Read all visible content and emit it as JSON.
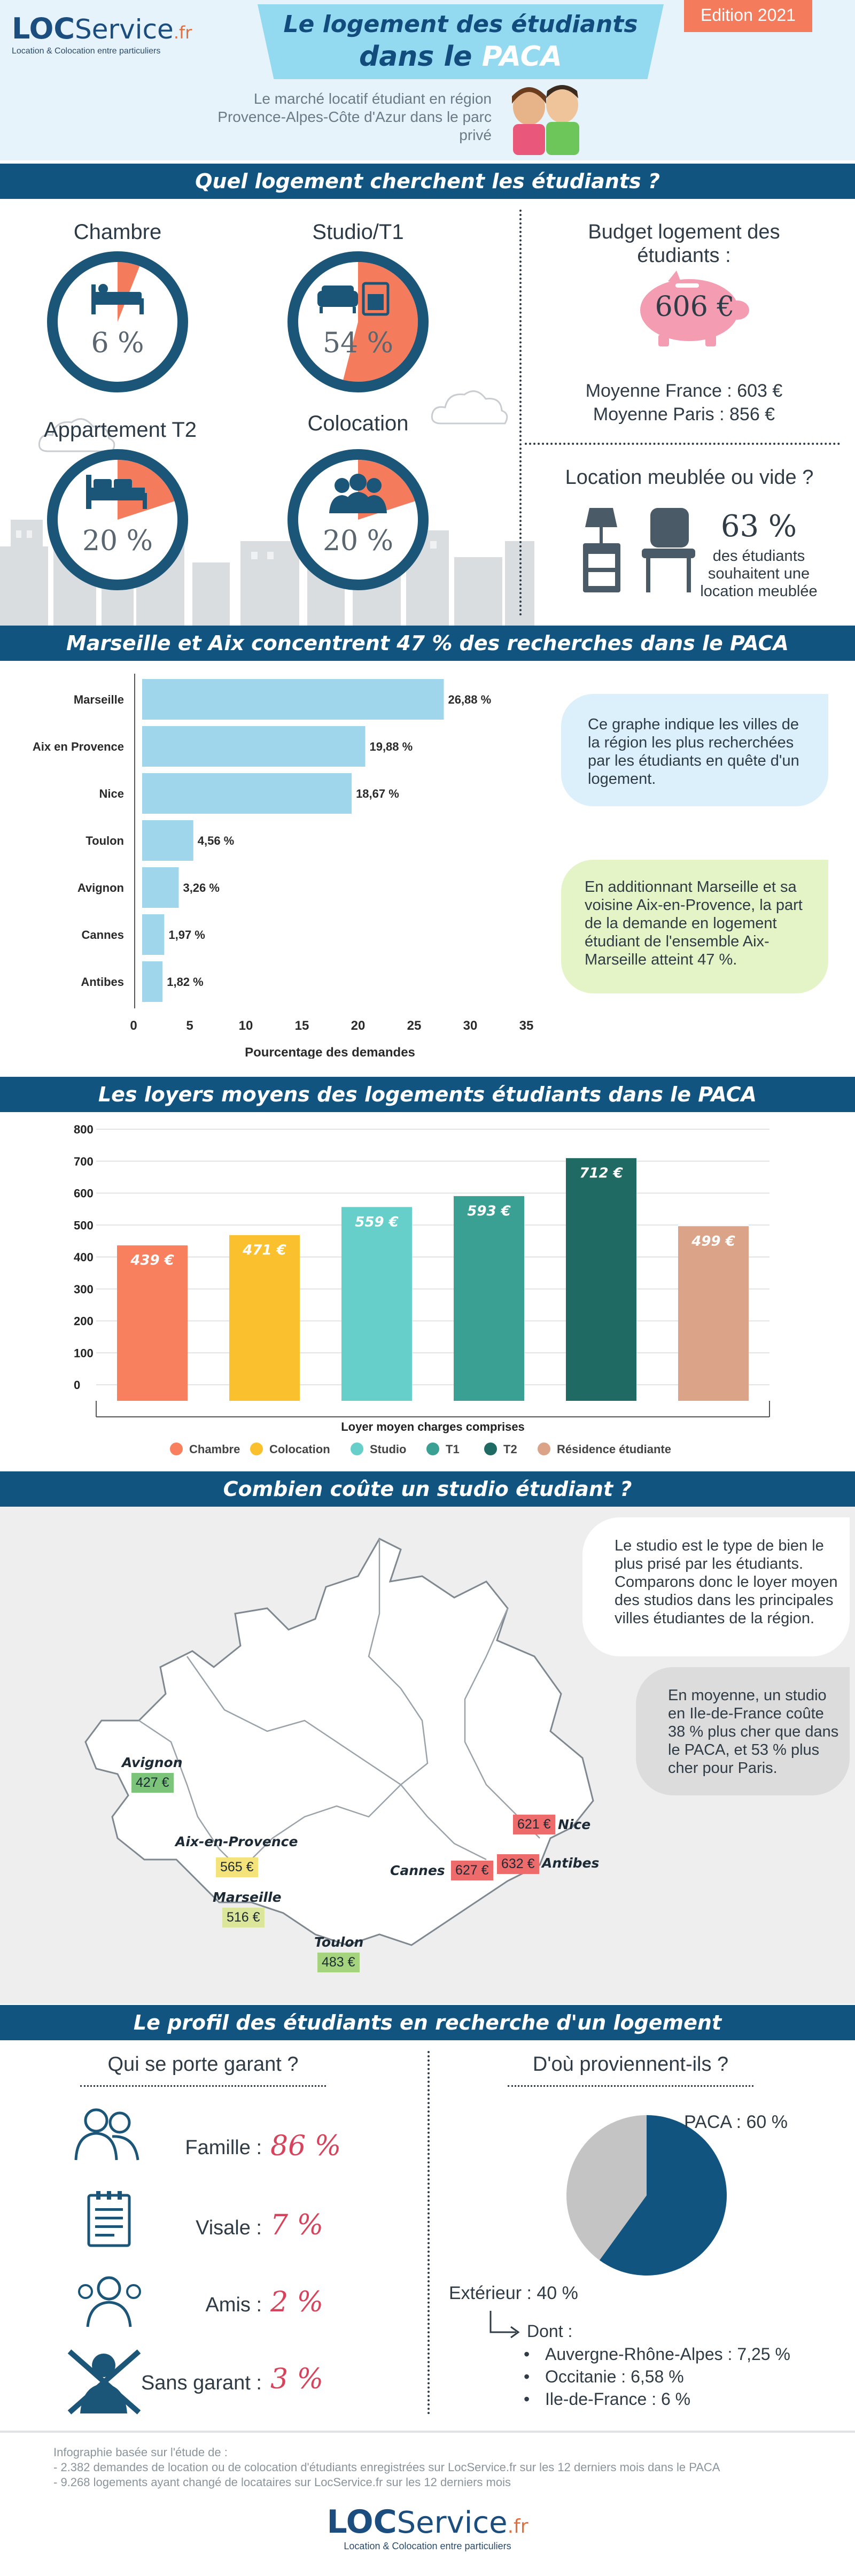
{
  "header": {
    "logo_bold": "LOC",
    "logo_rest": "Service",
    "logo_tld": ".fr",
    "logo_tagline": "Location & Colocation entre particuliers",
    "title_line1": "Le logement des étudiants",
    "title_line2_prefix": "dans le ",
    "title_line2_bold": "PACA",
    "edition": "Edition 2021",
    "subtitle": "Le marché locatif étudiant en région Provence-Alpes-Côte d'Azur dans le parc privé"
  },
  "section1": {
    "band": "Quel logement cherchent les étudiants ?",
    "types": [
      {
        "label": "Chambre",
        "value": "6 %",
        "fraction": 0.06,
        "icon": "bed-icon"
      },
      {
        "label": "Studio/T1",
        "value": "54 %",
        "fraction": 0.54,
        "icon": "sofa-oven-icon"
      },
      {
        "label": "Appartement T2",
        "value": "20 %",
        "fraction": 0.2,
        "icon": "sofa-bed-icon"
      },
      {
        "label": "Colocation",
        "value": "20 %",
        "fraction": 0.2,
        "icon": "group-icon"
      }
    ],
    "budget_title": "Budget logement des étudiants :",
    "budget_value": "606 €",
    "budget_france": "Moyenne France : 603 €",
    "budget_paris": "Moyenne Paris : 856 €",
    "meuble_title": "Location meublée ou vide ?",
    "meuble_pct": "63 %",
    "meuble_text": "des étudiants souhaitent une location meublée"
  },
  "section2": {
    "band": "Marseille et Aix concentrent 47 % des recherches dans le PACA",
    "bubble1": "Ce graphe indique les villes de la région les plus recherchées par les étudiants en quête d'un logement.",
    "bubble2": "En additionnant Marseille et sa voisine Aix-en-Provence, la part de la demande en logement étudiant de l'ensemble Aix-Marseille atteint 47 %."
  },
  "section3": {
    "band": "Les loyers moyens des logements étudiants dans le PACA"
  },
  "section4": {
    "band": "Combien coûte un studio étudiant ?",
    "bubble1": "Le studio est le type de bien le plus prisé par les étudiants. Comparons donc le loyer moyen des studios dans les principales villes étudiantes de la région.",
    "bubble2": "En moyenne, un studio en Ile-de-France coûte 38 % plus cher que dans le PACA, et 53 % plus cher pour Paris.",
    "cities": [
      {
        "name": "Avignon",
        "price": "427 €",
        "color": "#7cc47a"
      },
      {
        "name": "Aix-en-Provence",
        "price": "565 €",
        "color": "#f4e27a"
      },
      {
        "name": "Marseille",
        "price": "516 €",
        "color": "#dbe69a"
      },
      {
        "name": "Toulon",
        "price": "483 €",
        "color": "#a6d47e"
      },
      {
        "name": "Cannes",
        "price": "627 €",
        "color": "#ee6b6b"
      },
      {
        "name": "Nice",
        "price": "621 €",
        "color": "#ee6b6b"
      },
      {
        "name": "Antibes",
        "price": "632 €",
        "color": "#ee6b6b"
      }
    ]
  },
  "section5": {
    "band": "Le profil des étudiants en recherche d'un logement",
    "garant_title": "Qui se porte garant ?",
    "garants": [
      {
        "label": "Famille :",
        "value": "86 %",
        "icon": "family-icon"
      },
      {
        "label": "Visale :",
        "value": "7 %",
        "icon": "document-icon"
      },
      {
        "label": "Amis :",
        "value": "2 %",
        "icon": "friends-icon"
      },
      {
        "label": "Sans garant :",
        "value": "3 %",
        "icon": "no-guarantor-icon"
      }
    ],
    "origin_title": "D'où proviennent-ils ?",
    "origin_paca": "PACA : 60 %",
    "origin_ext": "Extérieur : 40 %",
    "origin_dont": "Dont :",
    "origin_list": [
      "Auvergne-Rhône-Alpes : 7,25 %",
      "Occitanie : 6,58 %",
      "Ile-de-France : 6 %"
    ]
  },
  "footer": {
    "source_title": "Infographie basée sur l'étude de :",
    "source1": "- 2.382 demandes de location ou de colocation d'étudiants enregistrées sur LocService.fr sur les 12 derniers mois dans le PACA",
    "source2": "- 9.268 logements ayant changé de locataires sur LocService.fr sur les 12 derniers mois"
  },
  "colors": {
    "navy": "#115480",
    "salmon": "#f47c5d",
    "ring": "#1b5679",
    "pink": "#d8425a",
    "bar_blue": "#9fd6ec"
  },
  "chart_data": [
    {
      "type": "bar",
      "orientation": "horizontal",
      "categories": [
        "Marseille",
        "Aix en Provence",
        "Nice",
        "Toulon",
        "Avignon",
        "Cannes",
        "Antibes"
      ],
      "values": [
        26.88,
        19.88,
        18.67,
        4.56,
        3.26,
        1.97,
        1.82
      ],
      "data_labels": [
        "26,88 %",
        "19,88 %",
        "18,67 %",
        "4,56 %",
        "3,26 %",
        "1,97 %",
        "1,82 %"
      ],
      "xlabel": "Pourcentage des demandes",
      "xlim": [
        0,
        35
      ],
      "xticks": [
        0,
        5,
        10,
        15,
        20,
        25,
        30,
        35
      ],
      "grid": false
    },
    {
      "type": "bar",
      "categories": [
        "Chambre",
        "Colocation",
        "Studio",
        "T1",
        "T2",
        "Résidence étudiante"
      ],
      "values": [
        439,
        471,
        559,
        593,
        712,
        499
      ],
      "data_labels": [
        "439 €",
        "471 €",
        "559 €",
        "593 €",
        "712 €",
        "499 €"
      ],
      "colors": [
        "#f9805f",
        "#fbc02d",
        "#66cfc9",
        "#3aa094",
        "#1f6b63",
        "#dba489"
      ],
      "xlabel": "Loyer moyen charges comprises",
      "ylim": [
        0,
        800
      ],
      "yticks": [
        0,
        100,
        200,
        300,
        400,
        500,
        600,
        700,
        800
      ],
      "grid": true,
      "legend": "bottom"
    },
    {
      "type": "pie",
      "categories": [
        "PACA",
        "Extérieur"
      ],
      "values": [
        60,
        40
      ],
      "colors": [
        "#115480",
        "#c4c4c4"
      ]
    }
  ]
}
